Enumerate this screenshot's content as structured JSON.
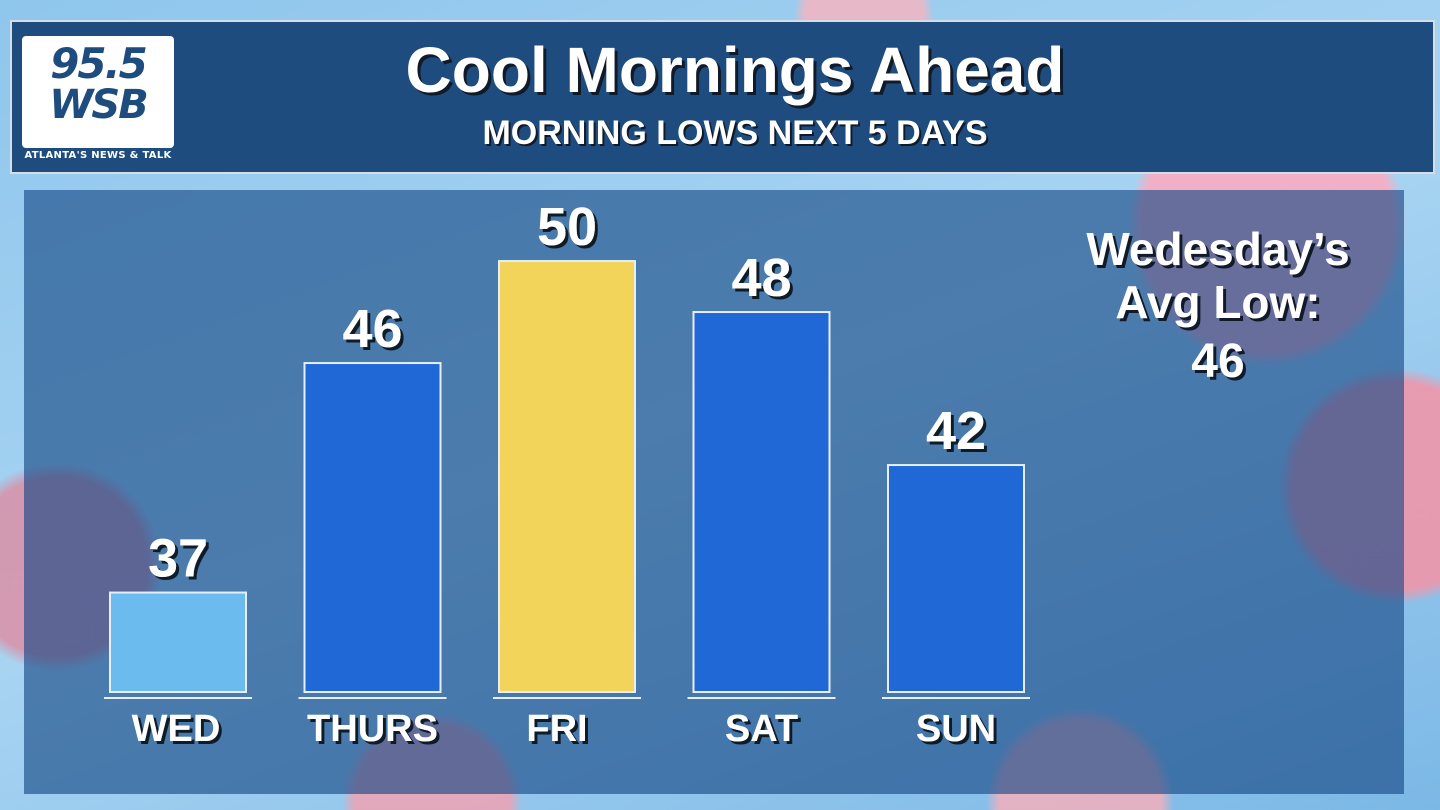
{
  "header": {
    "title": "Cool Mornings Ahead",
    "subtitle": "MORNING LOWS NEXT 5 DAYS",
    "logo": {
      "line1": "95.5",
      "line2": "WSB",
      "tagline": "ATLANTA'S NEWS & TALK"
    }
  },
  "note": {
    "line1": "Wedesday’s",
    "line2": "Avg Low:",
    "value": "46"
  },
  "colors": {
    "header_bg": "#1e4c7e",
    "bar_default": "#1f68d6",
    "bar_wed": "#6bbbee",
    "bar_highlight": "#f2d45a"
  },
  "chart_data": {
    "type": "bar",
    "title": "",
    "xlabel": "",
    "ylabel": "",
    "categories": [
      "WED",
      "THURS",
      "FRI",
      "SAT",
      "SUN"
    ],
    "values": [
      37,
      46,
      50,
      48,
      42
    ],
    "value_labels": [
      "37",
      "46",
      "50",
      "48",
      "42"
    ],
    "bar_colors": [
      "#6bbbee",
      "#1f68d6",
      "#f2d45a",
      "#1f68d6",
      "#1f68d6"
    ],
    "grid": false,
    "legend": "none"
  }
}
